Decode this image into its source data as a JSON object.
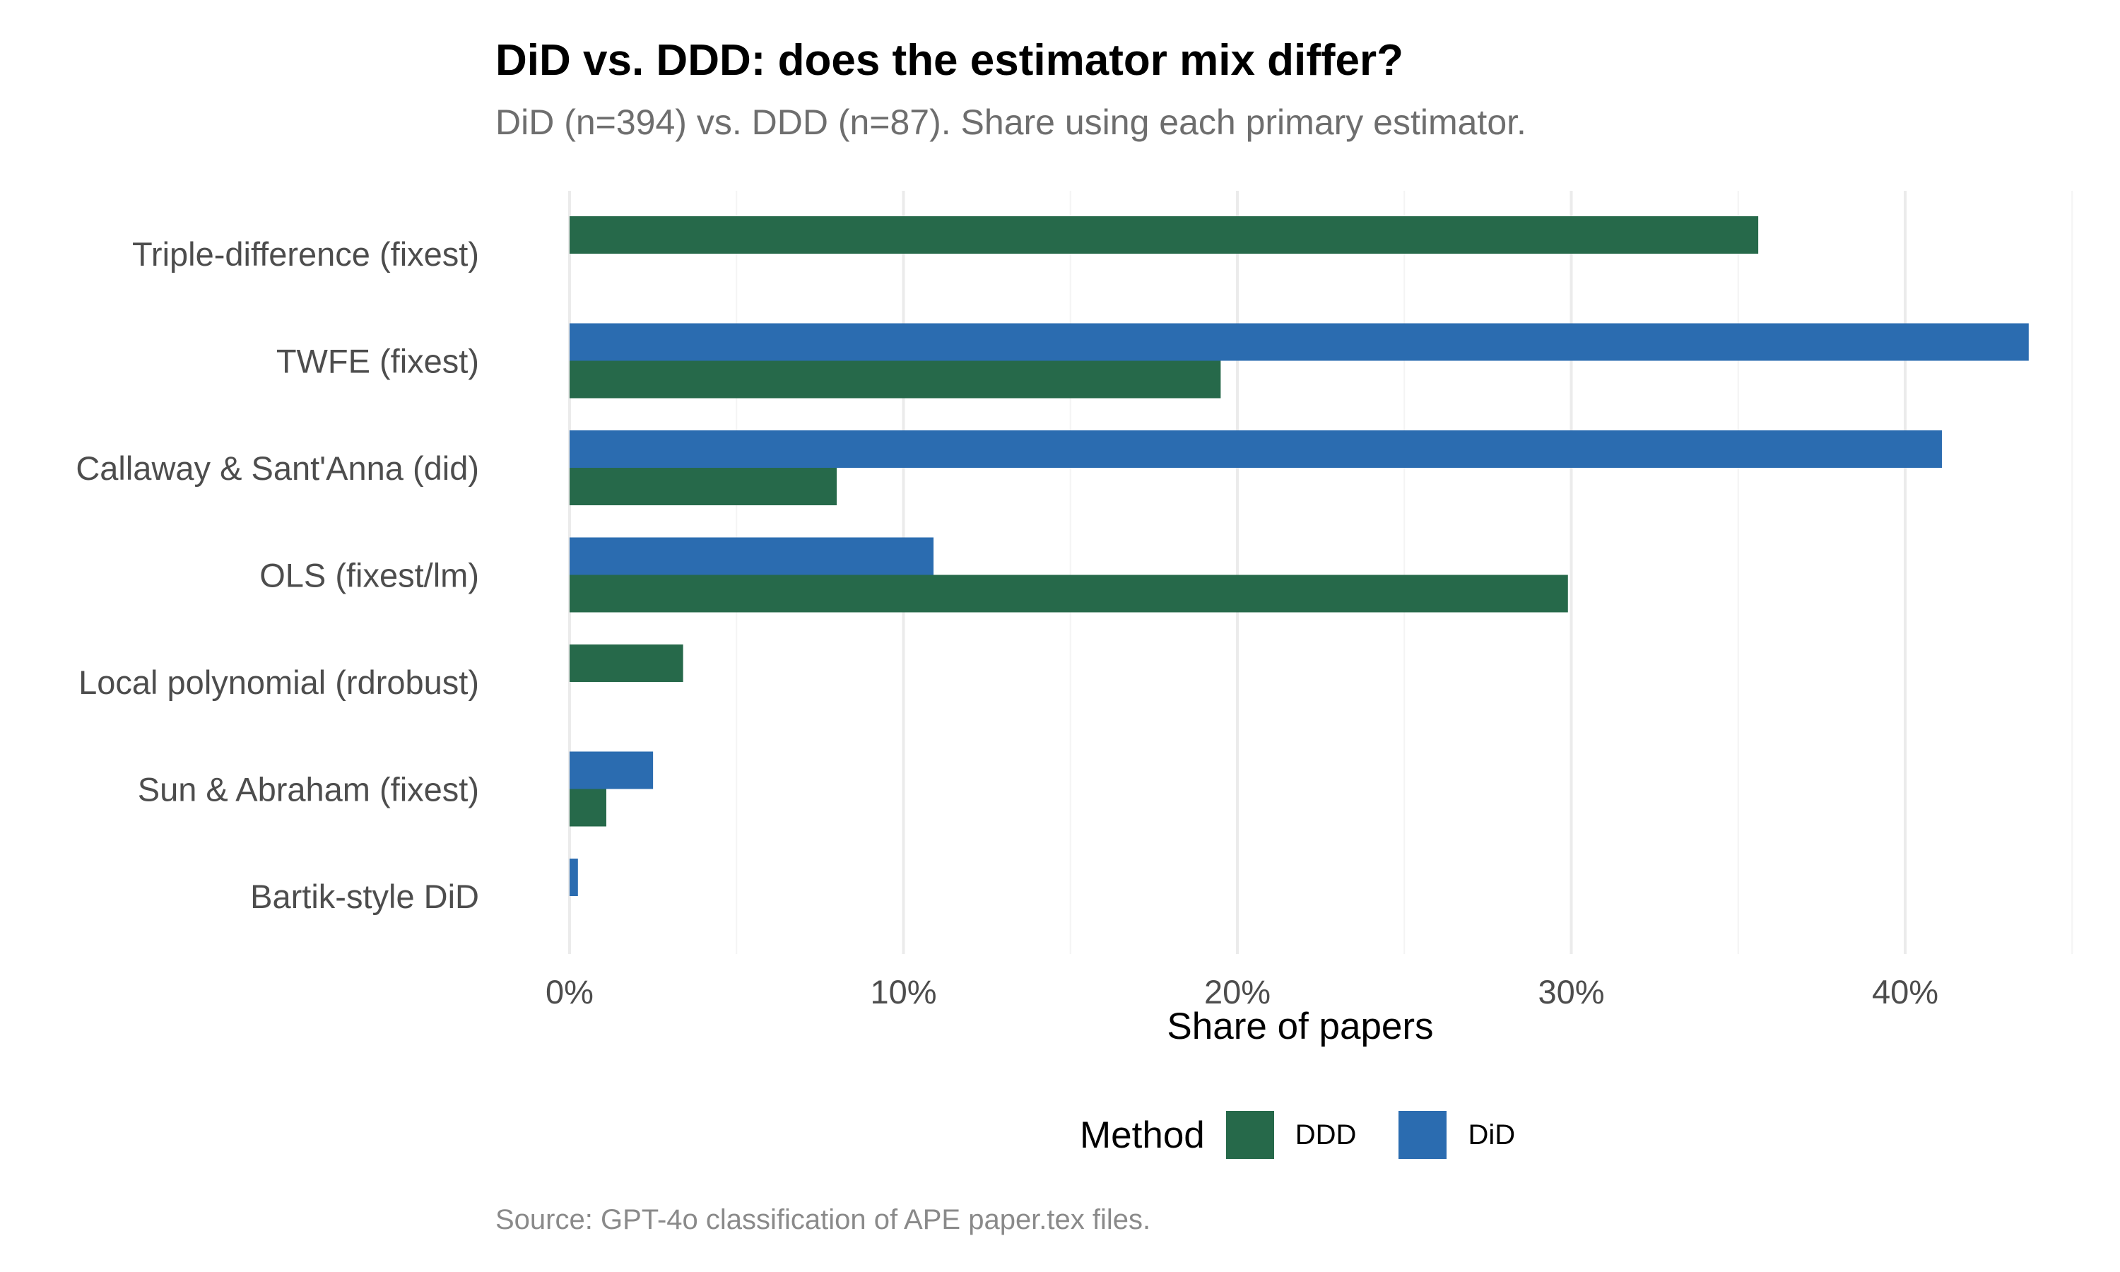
{
  "chart_data": {
    "type": "bar",
    "orientation": "horizontal",
    "title": "DiD vs. DDD: does the estimator mix differ?",
    "subtitle": "DiD (n=394) vs. DDD (n=87). Share using each primary estimator.",
    "caption": "Source: GPT-4o classification of APE paper.tex files.",
    "xlabel": "Share of papers",
    "ylabel": "",
    "xlim": [
      0,
      45
    ],
    "x_ticks": [
      0,
      10,
      20,
      30,
      40
    ],
    "x_tick_labels": [
      "0%",
      "10%",
      "20%",
      "30%",
      "40%"
    ],
    "grid": "vertical",
    "legend": {
      "title": "Method",
      "position": "bottom"
    },
    "categories": [
      "Triple-difference (fixest)",
      "TWFE (fixest)",
      "Callaway & Sant'Anna (did)",
      "OLS (fixest/lm)",
      "Local polynomial (rdrobust)",
      "Sun & Abraham (fixest)",
      "Bartik-style DiD"
    ],
    "series": [
      {
        "name": "DDD",
        "color": "#26694a",
        "values": [
          35.6,
          19.5,
          8.0,
          29.9,
          3.4,
          1.1,
          null
        ]
      },
      {
        "name": "DiD",
        "color": "#2b6cb0",
        "values": [
          null,
          43.7,
          41.1,
          10.9,
          null,
          2.5,
          0.25
        ]
      }
    ]
  }
}
